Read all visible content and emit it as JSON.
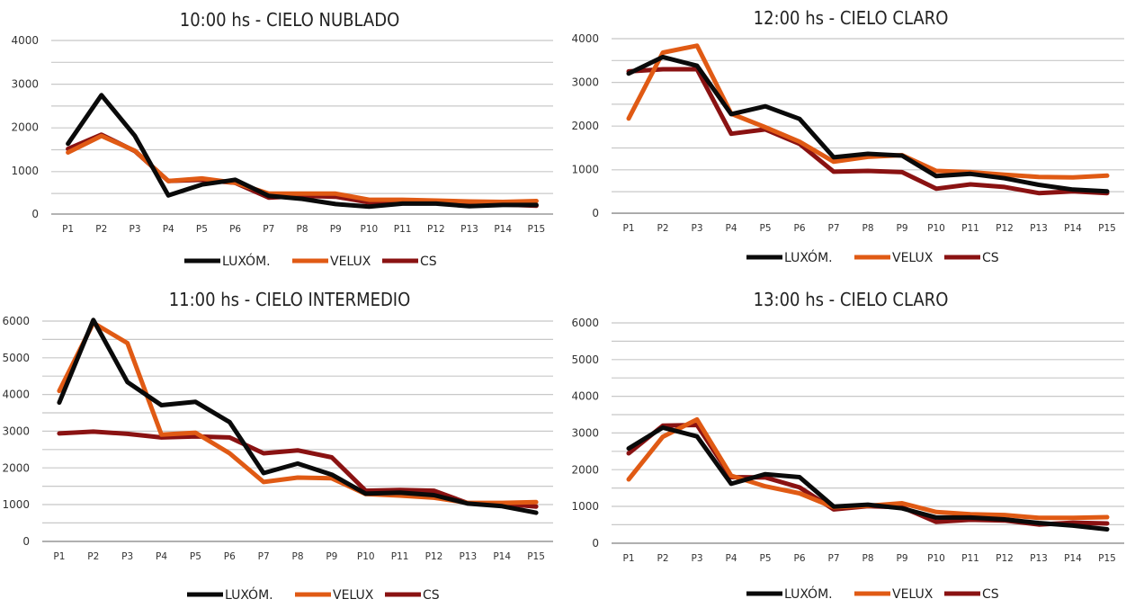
{
  "colors": {
    "luxometro": "#0a0a0a",
    "velux": "#e05a14",
    "cs": "#8a1212",
    "grid": "#c8c8c8"
  },
  "chart_data": [
    {
      "type": "line",
      "title": "10:00 hs - CIELO NUBLADO",
      "categories": [
        "P1",
        "P2",
        "P3",
        "P4",
        "P5",
        "P6",
        "P7",
        "P8",
        "P9",
        "P10",
        "P11",
        "P12",
        "P13",
        "P14",
        "P15"
      ],
      "ylim": [
        0,
        4000
      ],
      "yticks": [
        0,
        1000,
        2000,
        3000,
        4000
      ],
      "grid": true,
      "legend": "bottom",
      "series": [
        {
          "name": "LUXÓM.",
          "color_key": "luxometro",
          "values": [
            1620,
            2740,
            1800,
            430,
            680,
            790,
            420,
            350,
            230,
            170,
            240,
            240,
            180,
            210,
            210
          ]
        },
        {
          "name": "VELUX",
          "color_key": "velux",
          "values": [
            1420,
            1800,
            1460,
            760,
            820,
            720,
            470,
            470,
            470,
            330,
            330,
            310,
            290,
            280,
            300
          ]
        },
        {
          "name": "CS",
          "color_key": "cs",
          "values": [
            1500,
            1830,
            1450,
            760,
            790,
            720,
            380,
            420,
            400,
            270,
            260,
            260,
            190,
            220,
            190
          ]
        }
      ]
    },
    {
      "type": "line",
      "title": "12:00 hs - CIELO CLARO",
      "categories": [
        "P1",
        "P2",
        "P3",
        "P4",
        "P5",
        "P6",
        "P7",
        "P8",
        "P9",
        "P10",
        "P11",
        "P12",
        "P13",
        "P14",
        "P15"
      ],
      "ylim": [
        0,
        4000
      ],
      "yticks": [
        0,
        1000,
        2000,
        3000,
        4000
      ],
      "grid": true,
      "legend": "bottom",
      "series": [
        {
          "name": "LUXÓM.",
          "color_key": "luxometro",
          "values": [
            3200,
            3580,
            3380,
            2270,
            2450,
            2160,
            1280,
            1360,
            1320,
            850,
            900,
            800,
            650,
            540,
            500
          ]
        },
        {
          "name": "VELUX",
          "color_key": "velux",
          "values": [
            2170,
            3680,
            3840,
            2280,
            1970,
            1640,
            1180,
            1290,
            1330,
            970,
            940,
            880,
            830,
            820,
            860
          ]
        },
        {
          "name": "CS",
          "color_key": "cs",
          "values": [
            3250,
            3300,
            3300,
            1820,
            1920,
            1590,
            950,
            970,
            940,
            560,
            660,
            600,
            460,
            500,
            460
          ]
        }
      ]
    },
    {
      "type": "line",
      "title": "11:00 hs - CIELO INTERMEDIO",
      "categories": [
        "P1",
        "P2",
        "P3",
        "P4",
        "P5",
        "P6",
        "P7",
        "P8",
        "P9",
        "P10",
        "P11",
        "P12",
        "P13",
        "P14",
        "P15"
      ],
      "ylim": [
        0,
        6000
      ],
      "yticks": [
        0,
        1000,
        2000,
        3000,
        4000,
        5000,
        6000
      ],
      "grid": true,
      "legend": "bottom",
      "series": [
        {
          "name": "LUXÓM.",
          "color_key": "luxometro",
          "values": [
            3780,
            6030,
            4340,
            3710,
            3800,
            3250,
            1860,
            2120,
            1820,
            1300,
            1330,
            1260,
            1030,
            960,
            780
          ]
        },
        {
          "name": "VELUX",
          "color_key": "velux",
          "values": [
            4100,
            5950,
            5400,
            2910,
            2960,
            2400,
            1620,
            1740,
            1720,
            1290,
            1250,
            1190,
            1050,
            1050,
            1070
          ]
        },
        {
          "name": "CS",
          "color_key": "cs",
          "values": [
            2940,
            2990,
            2930,
            2830,
            2860,
            2830,
            2400,
            2480,
            2290,
            1380,
            1400,
            1380,
            1040,
            1030,
            950
          ]
        }
      ]
    },
    {
      "type": "line",
      "title": "13:00 hs - CIELO CLARO",
      "categories": [
        "P1",
        "P2",
        "P3",
        "P4",
        "P5",
        "P6",
        "P7",
        "P8",
        "P9",
        "P10",
        "P11",
        "P12",
        "P13",
        "P14",
        "P15"
      ],
      "ylim": [
        0,
        6000
      ],
      "yticks": [
        0,
        1000,
        2000,
        3000,
        4000,
        5000,
        6000
      ],
      "grid": true,
      "legend": "bottom",
      "series": [
        {
          "name": "LUXÓM.",
          "color_key": "luxometro",
          "values": [
            2580,
            3150,
            2910,
            1620,
            1880,
            1800,
            1000,
            1050,
            950,
            700,
            700,
            650,
            550,
            480,
            380
          ]
        },
        {
          "name": "VELUX",
          "color_key": "velux",
          "values": [
            1740,
            2900,
            3370,
            1840,
            1550,
            1360,
            980,
            1020,
            1090,
            850,
            790,
            770,
            690,
            690,
            710
          ]
        },
        {
          "name": "CS",
          "color_key": "cs",
          "values": [
            2450,
            3200,
            3220,
            1800,
            1790,
            1520,
            920,
            1010,
            980,
            580,
            640,
            620,
            510,
            560,
            540
          ]
        }
      ]
    }
  ]
}
